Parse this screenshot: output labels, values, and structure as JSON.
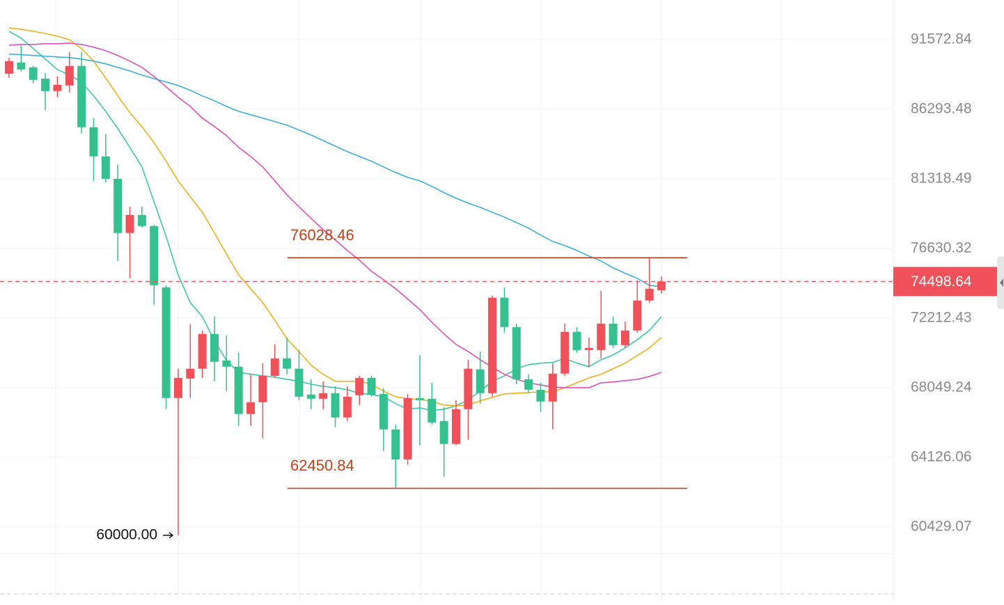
{
  "chart_data": {
    "type": "candlestick",
    "log_scale": true,
    "ylim": [
      59075,
      94720
    ],
    "yticks": [
      91572.84,
      86293.48,
      81318.49,
      76630.32,
      72212.43,
      68049.24,
      64126.06,
      60429.07
    ],
    "grid": true,
    "up_color": "#f0505a",
    "down_color": "#34c08f",
    "candles": {
      "open": [
        88950,
        89800,
        89430,
        88580,
        87640,
        88060,
        89540,
        84980,
        82890,
        81320,
        77650,
        78850,
        78110,
        74130,
        67450,
        68580,
        69160,
        71240,
        69650,
        69280,
        66540,
        67210,
        68740,
        69770,
        69160,
        67650,
        67410,
        67730,
        66340,
        67610,
        68620,
        67690,
        65670,
        64010,
        67450,
        67410,
        66140,
        64860,
        66810,
        69120,
        67730,
        73480,
        71660,
        68540,
        67930,
        67250,
        68870,
        71370,
        70270,
        70270,
        71870,
        70560,
        71450,
        73300,
        73950
      ],
      "high": [
        90180,
        91140,
        89540,
        89000,
        88740,
        90610,
        90610,
        85640,
        84480,
        82300,
        79410,
        79410,
        78200,
        74260,
        69160,
        71830,
        71450,
        72300,
        71150,
        70100,
        68870,
        69490,
        70610,
        71030,
        70270,
        68540,
        68420,
        68130,
        68130,
        68740,
        68740,
        68010,
        65940,
        67690,
        69980,
        68330,
        66930,
        67330,
        69690,
        70180,
        73610,
        74130,
        71870,
        68830,
        68330,
        69490,
        71870,
        71660,
        71030,
        73910,
        72300,
        72000,
        74570,
        76028.46,
        74830
      ],
      "low": [
        88630,
        89110,
        88220,
        86240,
        87180,
        87540,
        84530,
        81180,
        81080,
        75820,
        74700,
        78010,
        73040,
        66810,
        60000,
        67450,
        68620,
        68420,
        67850,
        65870,
        65870,
        65170,
        68620,
        68830,
        67330,
        66810,
        66810,
        65790,
        66140,
        67050,
        67530,
        64470,
        62450.84,
        63710,
        64780,
        65940,
        63080,
        64780,
        65090,
        67130,
        67530,
        71320,
        68250,
        67730,
        66650,
        65670,
        68740,
        70100,
        69240,
        69770,
        70400,
        70400,
        71320,
        73170,
        73740
      ],
      "close": [
        89910,
        89270,
        88480,
        87640,
        88110,
        89540,
        84980,
        82890,
        81320,
        77650,
        78850,
        78110,
        74260,
        67450,
        68620,
        69160,
        71240,
        69570,
        69280,
        66540,
        67210,
        68740,
        69770,
        69160,
        67530,
        67410,
        67730,
        66340,
        67530,
        68620,
        67650,
        65670,
        64010,
        67450,
        67330,
        66060,
        64860,
        66810,
        69160,
        67730,
        73480,
        71660,
        68540,
        67930,
        67250,
        68870,
        71370,
        70270,
        70400,
        71870,
        70560,
        71450,
        73300,
        74040,
        74498.64
      ]
    },
    "series": [
      {
        "color": "#3cc8a8",
        "values": [
          92220,
          91680,
          90880,
          90070,
          89270,
          88840,
          88320,
          87280,
          86140,
          84880,
          83530,
          82150,
          79750,
          77410,
          74930,
          73170,
          72300,
          70820,
          69650,
          68950,
          68830,
          68740,
          68660,
          68540,
          68420,
          68250,
          68130,
          68050,
          67930,
          67730,
          67650,
          67530,
          67130,
          66810,
          66890,
          66740,
          66810,
          67010,
          67330,
          67850,
          68420,
          68740,
          69160,
          69400,
          69490,
          69530,
          69770,
          69490,
          69280,
          69690,
          69980,
          70400,
          70900,
          71450,
          72300
        ]
      },
      {
        "color": "#f0b01a",
        "values": [
          92490,
          92380,
          92220,
          92060,
          91840,
          91570,
          90880,
          89910,
          88630,
          87280,
          86040,
          85000,
          83870,
          82550,
          81180,
          80080,
          79030,
          77650,
          76270,
          74930,
          74040,
          73170,
          72080,
          70940,
          70180,
          69360,
          68830,
          68420,
          68420,
          68420,
          68250,
          67850,
          67530,
          67410,
          67370,
          67250,
          67050,
          67010,
          67050,
          67290,
          67490,
          67690,
          67730,
          67770,
          67810,
          67810,
          68050,
          68330,
          68620,
          68830,
          69160,
          69490,
          69940,
          70400,
          71030
        ]
      },
      {
        "color": "#e050b8",
        "values": [
          91140,
          91200,
          91200,
          91250,
          91250,
          91300,
          91200,
          90980,
          90720,
          90340,
          89910,
          89430,
          88740,
          87960,
          87180,
          86500,
          85640,
          85030,
          84370,
          83530,
          82890,
          82150,
          81180,
          80220,
          79410,
          78620,
          77880,
          77190,
          76500,
          75870,
          75150,
          74610,
          74040,
          73390,
          72740,
          71960,
          71240,
          70610,
          70180,
          69690,
          69240,
          68830,
          68540,
          68330,
          68210,
          68090,
          68050,
          68050,
          68050,
          68330,
          68380,
          68460,
          68540,
          68700,
          68950
        ]
      },
      {
        "color": "#3ab0d8",
        "values": [
          90450,
          90400,
          90340,
          90290,
          90230,
          90180,
          90070,
          89910,
          89700,
          89430,
          89160,
          88840,
          88580,
          88320,
          88060,
          87700,
          87280,
          86920,
          86500,
          86140,
          85890,
          85640,
          85390,
          85130,
          84780,
          84420,
          84020,
          83620,
          83230,
          82890,
          82550,
          82150,
          81760,
          81420,
          81180,
          80800,
          80370,
          79990,
          79650,
          79370,
          79030,
          78710,
          78340,
          77970,
          77510,
          77090,
          76820,
          76500,
          76140,
          75820,
          75380,
          75020,
          74700,
          74260,
          74170
        ]
      }
    ],
    "levels": [
      76028.46,
      62450.84
    ],
    "level_color": "#c8401a",
    "low_marker": {
      "value": 60000,
      "label": "60000.00"
    },
    "last_price": 74498.64
  }
}
